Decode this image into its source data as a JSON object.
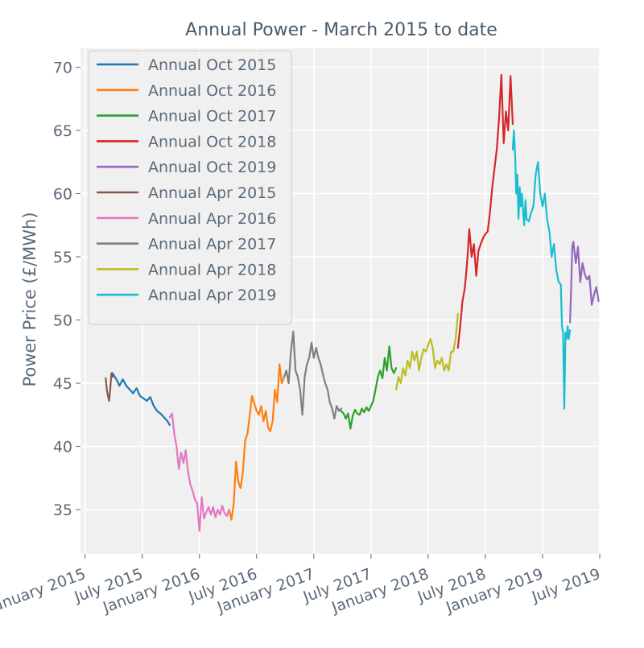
{
  "chart_data": {
    "type": "line",
    "title": "Annual Power - March 2015 to date",
    "xlabel": "",
    "ylabel": "Power Price (£/MWh)",
    "xlim": [
      2014.96,
      2019.5
    ],
    "ylim": [
      31.5,
      71.5
    ],
    "yticks": [
      35,
      40,
      45,
      50,
      55,
      60,
      65,
      70
    ],
    "xticks": [
      {
        "value": 2015.0,
        "label": "January 2015"
      },
      {
        "value": 2015.5,
        "label": "July 2015"
      },
      {
        "value": 2016.0,
        "label": "January 2016"
      },
      {
        "value": 2016.5,
        "label": "July 2016"
      },
      {
        "value": 2017.0,
        "label": "January 2017"
      },
      {
        "value": 2017.5,
        "label": "July 2017"
      },
      {
        "value": 2018.0,
        "label": "January 2018"
      },
      {
        "value": 2018.5,
        "label": "July 2018"
      },
      {
        "value": 2019.0,
        "label": "January 2019"
      },
      {
        "value": 2019.5,
        "label": "July 2019"
      }
    ],
    "grid": true,
    "legend_position": "top-left",
    "series": [
      {
        "name": "Annual Oct 2015",
        "color": "#1f77b4",
        "x": [
          2015.24,
          2015.26,
          2015.28,
          2015.3,
          2015.33,
          2015.36,
          2015.39,
          2015.42,
          2015.45,
          2015.48,
          2015.51,
          2015.54,
          2015.57,
          2015.6,
          2015.63,
          2015.66,
          2015.69,
          2015.72,
          2015.74
        ],
        "y": [
          45.8,
          45.5,
          45.2,
          44.8,
          45.3,
          44.8,
          44.5,
          44.2,
          44.6,
          44.0,
          43.8,
          43.6,
          43.9,
          43.2,
          42.8,
          42.6,
          42.3,
          42.0,
          41.7
        ]
      },
      {
        "name": "Annual Oct 2016",
        "color": "#ff7f0e",
        "x": [
          2016.26,
          2016.28,
          2016.3,
          2016.32,
          2016.34,
          2016.36,
          2016.38,
          2016.4,
          2016.42,
          2016.44,
          2016.46,
          2016.48,
          2016.5,
          2016.52,
          2016.54,
          2016.56,
          2016.58,
          2016.6,
          2016.62,
          2016.64,
          2016.66,
          2016.68,
          2016.7,
          2016.72,
          2016.74
        ],
        "y": [
          35.0,
          34.2,
          35.5,
          38.8,
          37.2,
          36.7,
          38.0,
          40.5,
          41.0,
          42.5,
          44.0,
          43.4,
          42.8,
          42.5,
          43.2,
          42.0,
          42.8,
          41.5,
          41.2,
          42.0,
          44.5,
          43.5,
          46.5,
          45.0,
          45.5
        ]
      },
      {
        "name": "Annual Oct 2017",
        "color": "#2ca02c",
        "x": [
          2017.24,
          2017.26,
          2017.28,
          2017.3,
          2017.32,
          2017.34,
          2017.36,
          2017.38,
          2017.4,
          2017.42,
          2017.44,
          2017.46,
          2017.48,
          2017.5,
          2017.52,
          2017.54,
          2017.56,
          2017.58,
          2017.6,
          2017.62,
          2017.64,
          2017.66,
          2017.68,
          2017.7,
          2017.72
        ],
        "y": [
          42.8,
          42.6,
          42.2,
          42.6,
          41.4,
          42.4,
          42.9,
          42.6,
          42.5,
          43.0,
          42.7,
          43.1,
          42.8,
          43.2,
          43.6,
          44.5,
          45.5,
          46.0,
          45.4,
          47.0,
          46.0,
          47.9,
          46.2,
          45.8,
          46.2
        ]
      },
      {
        "name": "Annual Oct 2018",
        "color": "#d62728",
        "x": [
          2018.26,
          2018.28,
          2018.3,
          2018.32,
          2018.34,
          2018.36,
          2018.38,
          2018.4,
          2018.42,
          2018.44,
          2018.46,
          2018.48,
          2018.5,
          2018.52,
          2018.54,
          2018.56,
          2018.58,
          2018.6,
          2018.62,
          2018.64,
          2018.66,
          2018.68,
          2018.7,
          2018.72,
          2018.74
        ],
        "y": [
          47.8,
          49.5,
          51.5,
          52.5,
          54.5,
          57.2,
          55.0,
          56.0,
          53.5,
          55.5,
          56.0,
          56.5,
          56.8,
          57.0,
          58.5,
          60.5,
          62.0,
          63.5,
          66.0,
          69.4,
          64.0,
          66.5,
          65.0,
          69.3,
          65.5
        ]
      },
      {
        "name": "Annual Oct 2019",
        "color": "#9467bd",
        "x": [
          2019.24,
          2019.25,
          2019.26,
          2019.27,
          2019.29,
          2019.31,
          2019.33,
          2019.35,
          2019.37,
          2019.39,
          2019.41,
          2019.43,
          2019.45,
          2019.47,
          2019.49
        ],
        "y": [
          49.8,
          52.5,
          55.8,
          56.2,
          54.5,
          55.8,
          53.0,
          54.5,
          53.6,
          53.2,
          53.5,
          51.2,
          52.0,
          52.6,
          51.5
        ]
      },
      {
        "name": "Annual Apr 2015",
        "color": "#8c564b",
        "x": [
          2015.18,
          2015.19,
          2015.2,
          2015.21,
          2015.22,
          2015.23,
          2015.24
        ],
        "y": [
          45.4,
          44.5,
          44.0,
          43.6,
          44.5,
          45.8,
          45.5
        ]
      },
      {
        "name": "Annual Apr 2016",
        "color": "#e377c2",
        "x": [
          2015.74,
          2015.76,
          2015.78,
          2015.8,
          2015.82,
          2015.84,
          2015.86,
          2015.88,
          2015.9,
          2015.92,
          2015.94,
          2015.96,
          2015.98,
          2016.0,
          2016.02,
          2016.04,
          2016.06,
          2016.08,
          2016.1,
          2016.12,
          2016.14,
          2016.16,
          2016.18,
          2016.2,
          2016.22,
          2016.24,
          2016.26
        ],
        "y": [
          42.3,
          42.6,
          41.0,
          40.0,
          38.2,
          39.5,
          38.7,
          39.7,
          38.0,
          37.0,
          36.5,
          35.8,
          35.5,
          33.3,
          36.0,
          34.3,
          34.8,
          35.2,
          34.6,
          35.2,
          34.4,
          35.0,
          34.6,
          35.3,
          34.7,
          34.5,
          35.0
        ]
      },
      {
        "name": "Annual Apr 2017",
        "color": "#7f7f7f",
        "x": [
          2016.74,
          2016.76,
          2016.78,
          2016.8,
          2016.82,
          2016.84,
          2016.86,
          2016.88,
          2016.9,
          2016.92,
          2016.94,
          2016.96,
          2016.98,
          2017.0,
          2017.02,
          2017.04,
          2017.06,
          2017.08,
          2017.1,
          2017.12,
          2017.14,
          2017.16,
          2017.18,
          2017.2,
          2017.22,
          2017.24
        ],
        "y": [
          45.5,
          46.0,
          45.0,
          47.5,
          49.1,
          46.0,
          45.5,
          44.5,
          42.5,
          45.5,
          46.5,
          47.0,
          48.2,
          47.0,
          47.8,
          47.0,
          46.5,
          45.7,
          45.0,
          44.5,
          43.5,
          43.0,
          42.2,
          43.2,
          42.8,
          43.0
        ]
      },
      {
        "name": "Annual Apr 2018",
        "color": "#bcbd22",
        "x": [
          2017.72,
          2017.74,
          2017.76,
          2017.78,
          2017.8,
          2017.82,
          2017.84,
          2017.86,
          2017.88,
          2017.9,
          2017.92,
          2017.94,
          2017.96,
          2017.98,
          2018.0,
          2018.02,
          2018.04,
          2018.06,
          2018.08,
          2018.1,
          2018.12,
          2018.14,
          2018.16,
          2018.18,
          2018.2,
          2018.22,
          2018.24,
          2018.26
        ],
        "y": [
          44.5,
          45.5,
          45.0,
          46.2,
          45.6,
          46.8,
          46.2,
          47.5,
          46.8,
          47.5,
          46.0,
          47.0,
          47.7,
          47.5,
          48.0,
          48.5,
          47.8,
          46.2,
          46.8,
          46.5,
          47.0,
          46.0,
          46.5,
          46.0,
          47.5,
          47.5,
          48.5,
          50.5
        ]
      },
      {
        "name": "Annual Apr 2019",
        "color": "#17becf",
        "x": [
          2018.74,
          2018.75,
          2018.76,
          2018.77,
          2018.78,
          2018.79,
          2018.8,
          2018.81,
          2018.82,
          2018.83,
          2018.84,
          2018.85,
          2018.86,
          2018.88,
          2018.9,
          2018.92,
          2018.94,
          2018.96,
          2018.98,
          2019.0,
          2019.02,
          2019.04,
          2019.06,
          2019.08,
          2019.1,
          2019.12,
          2019.14,
          2019.16,
          2019.17,
          2019.18,
          2019.19,
          2019.2,
          2019.21,
          2019.22,
          2019.23,
          2019.24
        ],
        "y": [
          63.5,
          65.0,
          63.0,
          60.0,
          61.5,
          58.0,
          60.5,
          59.0,
          60.0,
          58.5,
          57.5,
          59.5,
          58.0,
          57.8,
          58.5,
          59.0,
          61.5,
          62.5,
          60.0,
          59.0,
          60.0,
          58.0,
          57.0,
          55.0,
          56.0,
          54.0,
          53.0,
          52.8,
          49.5,
          49.0,
          43.0,
          49.0,
          48.5,
          49.5,
          48.5,
          49.2
        ]
      }
    ]
  }
}
